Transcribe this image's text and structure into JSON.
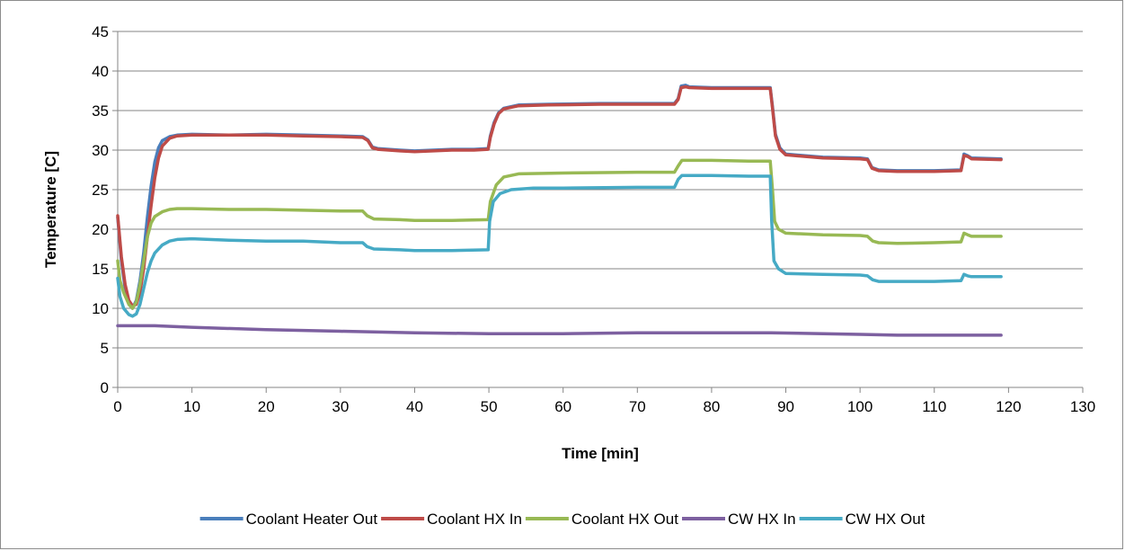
{
  "chart_data": {
    "type": "line",
    "xlabel": "Time [min]",
    "ylabel": "Temperature [C]",
    "xlim": [
      0,
      130
    ],
    "ylim": [
      0,
      45
    ],
    "x_ticks": [
      0,
      10,
      20,
      30,
      40,
      50,
      60,
      70,
      80,
      90,
      100,
      110,
      120,
      130
    ],
    "y_ticks": [
      0,
      5,
      10,
      15,
      20,
      25,
      30,
      35,
      40,
      45
    ],
    "grid": "horizontal",
    "legend_position": "bottom",
    "series": [
      {
        "name": "Coolant Heater Out",
        "color": "#4a7ebb",
        "points": [
          [
            0,
            21.5
          ],
          [
            0.5,
            16
          ],
          [
            1,
            12.5
          ],
          [
            1.5,
            10.5
          ],
          [
            2,
            10
          ],
          [
            2.5,
            11
          ],
          [
            3,
            13.5
          ],
          [
            3.5,
            17
          ],
          [
            4,
            21.5
          ],
          [
            4.5,
            25.5
          ],
          [
            5,
            28.5
          ],
          [
            5.5,
            30.3
          ],
          [
            6,
            31.2
          ],
          [
            7,
            31.7
          ],
          [
            8,
            31.9
          ],
          [
            10,
            32
          ],
          [
            15,
            31.9
          ],
          [
            20,
            32
          ],
          [
            25,
            31.9
          ],
          [
            30,
            31.8
          ],
          [
            33,
            31.7
          ],
          [
            33.7,
            31.3
          ],
          [
            34.3,
            30.4
          ],
          [
            35,
            30.2
          ],
          [
            38,
            30
          ],
          [
            40,
            29.9
          ],
          [
            45,
            30.1
          ],
          [
            48,
            30.1
          ],
          [
            49.9,
            30.2
          ],
          [
            50.2,
            31.8
          ],
          [
            50.7,
            33.5
          ],
          [
            51.3,
            34.7
          ],
          [
            52,
            35.3
          ],
          [
            54,
            35.7
          ],
          [
            58,
            35.8
          ],
          [
            65,
            35.9
          ],
          [
            70,
            35.9
          ],
          [
            75,
            35.9
          ],
          [
            75.5,
            36.5
          ],
          [
            75.9,
            38.1
          ],
          [
            76.5,
            38.2
          ],
          [
            77,
            38
          ],
          [
            80,
            37.9
          ],
          [
            85,
            37.9
          ],
          [
            87.9,
            37.9
          ],
          [
            88.2,
            35.5
          ],
          [
            88.6,
            32
          ],
          [
            89.2,
            30.3
          ],
          [
            90,
            29.5
          ],
          [
            95,
            29.1
          ],
          [
            100,
            29
          ],
          [
            101,
            28.9
          ],
          [
            101.6,
            27.8
          ],
          [
            102.5,
            27.5
          ],
          [
            105,
            27.4
          ],
          [
            110,
            27.4
          ],
          [
            113.6,
            27.5
          ],
          [
            114,
            29.5
          ],
          [
            114.5,
            29.3
          ],
          [
            115,
            29
          ],
          [
            119,
            28.9
          ]
        ]
      },
      {
        "name": "Coolant HX In",
        "color": "#be4b48",
        "points": [
          [
            0,
            21.7
          ],
          [
            0.5,
            16.5
          ],
          [
            1,
            13
          ],
          [
            1.5,
            11
          ],
          [
            2,
            10.3
          ],
          [
            2.5,
            10.5
          ],
          [
            3,
            12
          ],
          [
            3.5,
            15
          ],
          [
            4,
            19
          ],
          [
            4.5,
            23
          ],
          [
            5,
            26.5
          ],
          [
            5.5,
            29
          ],
          [
            6,
            30.5
          ],
          [
            7,
            31.5
          ],
          [
            8,
            31.8
          ],
          [
            10,
            31.9
          ],
          [
            15,
            31.9
          ],
          [
            20,
            31.9
          ],
          [
            25,
            31.8
          ],
          [
            30,
            31.7
          ],
          [
            33,
            31.6
          ],
          [
            33.7,
            31.2
          ],
          [
            34.3,
            30.3
          ],
          [
            35,
            30.1
          ],
          [
            38,
            29.9
          ],
          [
            40,
            29.8
          ],
          [
            45,
            30
          ],
          [
            48,
            30
          ],
          [
            49.9,
            30.1
          ],
          [
            50.2,
            31.6
          ],
          [
            50.7,
            33.3
          ],
          [
            51.3,
            34.6
          ],
          [
            52,
            35.2
          ],
          [
            54,
            35.6
          ],
          [
            58,
            35.7
          ],
          [
            65,
            35.8
          ],
          [
            70,
            35.8
          ],
          [
            75,
            35.8
          ],
          [
            75.5,
            36.4
          ],
          [
            75.9,
            37.9
          ],
          [
            76.5,
            38
          ],
          [
            77,
            37.9
          ],
          [
            80,
            37.8
          ],
          [
            85,
            37.8
          ],
          [
            87.9,
            37.8
          ],
          [
            88.2,
            35.3
          ],
          [
            88.6,
            31.8
          ],
          [
            89.2,
            30.1
          ],
          [
            90,
            29.4
          ],
          [
            95,
            29
          ],
          [
            100,
            28.9
          ],
          [
            101,
            28.8
          ],
          [
            101.6,
            27.7
          ],
          [
            102.5,
            27.4
          ],
          [
            105,
            27.3
          ],
          [
            110,
            27.3
          ],
          [
            113.6,
            27.4
          ],
          [
            114,
            29.3
          ],
          [
            114.5,
            29.2
          ],
          [
            115,
            28.9
          ],
          [
            119,
            28.8
          ]
        ]
      },
      {
        "name": "Coolant HX Out",
        "color": "#98b954",
        "points": [
          [
            0,
            16
          ],
          [
            0.3,
            13.5
          ],
          [
            0.8,
            12
          ],
          [
            1.5,
            10.5
          ],
          [
            2,
            10
          ],
          [
            2.5,
            10.8
          ],
          [
            3,
            13
          ],
          [
            3.5,
            16
          ],
          [
            4,
            19
          ],
          [
            4.5,
            20.8
          ],
          [
            5,
            21.6
          ],
          [
            6,
            22.2
          ],
          [
            7,
            22.5
          ],
          [
            8,
            22.6
          ],
          [
            10,
            22.6
          ],
          [
            15,
            22.5
          ],
          [
            20,
            22.5
          ],
          [
            25,
            22.4
          ],
          [
            30,
            22.3
          ],
          [
            33,
            22.3
          ],
          [
            33.6,
            21.7
          ],
          [
            34.5,
            21.3
          ],
          [
            38,
            21.2
          ],
          [
            40,
            21.1
          ],
          [
            45,
            21.1
          ],
          [
            49.9,
            21.2
          ],
          [
            50.2,
            23.5
          ],
          [
            51,
            25.6
          ],
          [
            52,
            26.6
          ],
          [
            54,
            27
          ],
          [
            60,
            27.1
          ],
          [
            70,
            27.2
          ],
          [
            75,
            27.2
          ],
          [
            75.5,
            28
          ],
          [
            76,
            28.7
          ],
          [
            80,
            28.7
          ],
          [
            85,
            28.6
          ],
          [
            87.9,
            28.6
          ],
          [
            88.2,
            25
          ],
          [
            88.5,
            21
          ],
          [
            89,
            20
          ],
          [
            90,
            19.5
          ],
          [
            95,
            19.3
          ],
          [
            100,
            19.2
          ],
          [
            101,
            19.1
          ],
          [
            101.7,
            18.5
          ],
          [
            102.5,
            18.3
          ],
          [
            105,
            18.2
          ],
          [
            110,
            18.3
          ],
          [
            113.6,
            18.4
          ],
          [
            114,
            19.5
          ],
          [
            114.5,
            19.3
          ],
          [
            115,
            19.1
          ],
          [
            119,
            19.1
          ]
        ]
      },
      {
        "name": "CW HX In",
        "color": "#7d60a0",
        "points": [
          [
            0,
            7.8
          ],
          [
            5,
            7.8
          ],
          [
            10,
            7.6
          ],
          [
            20,
            7.3
          ],
          [
            30,
            7.1
          ],
          [
            40,
            6.9
          ],
          [
            50,
            6.8
          ],
          [
            60,
            6.8
          ],
          [
            70,
            6.9
          ],
          [
            80,
            6.9
          ],
          [
            88,
            6.9
          ],
          [
            95,
            6.8
          ],
          [
            100,
            6.7
          ],
          [
            105,
            6.6
          ],
          [
            110,
            6.6
          ],
          [
            119,
            6.6
          ]
        ]
      },
      {
        "name": "CW HX Out",
        "color": "#46aac5",
        "points": [
          [
            0,
            13.8
          ],
          [
            0.3,
            11.5
          ],
          [
            0.8,
            10
          ],
          [
            1.5,
            9.2
          ],
          [
            2,
            9
          ],
          [
            2.5,
            9.3
          ],
          [
            3,
            10.5
          ],
          [
            3.5,
            12.5
          ],
          [
            4,
            14.5
          ],
          [
            4.5,
            16
          ],
          [
            5,
            17
          ],
          [
            6,
            18
          ],
          [
            7,
            18.5
          ],
          [
            8,
            18.7
          ],
          [
            10,
            18.8
          ],
          [
            15,
            18.6
          ],
          [
            20,
            18.5
          ],
          [
            25,
            18.5
          ],
          [
            30,
            18.3
          ],
          [
            33,
            18.3
          ],
          [
            33.6,
            17.8
          ],
          [
            34.5,
            17.5
          ],
          [
            38,
            17.4
          ],
          [
            40,
            17.3
          ],
          [
            45,
            17.3
          ],
          [
            49.9,
            17.4
          ],
          [
            50.1,
            21
          ],
          [
            50.6,
            23.5
          ],
          [
            51.5,
            24.5
          ],
          [
            53,
            25
          ],
          [
            56,
            25.2
          ],
          [
            60,
            25.2
          ],
          [
            70,
            25.3
          ],
          [
            75,
            25.3
          ],
          [
            75.5,
            26.3
          ],
          [
            76,
            26.8
          ],
          [
            80,
            26.8
          ],
          [
            85,
            26.7
          ],
          [
            87.9,
            26.7
          ],
          [
            88.1,
            21
          ],
          [
            88.4,
            16
          ],
          [
            89,
            15
          ],
          [
            90,
            14.4
          ],
          [
            95,
            14.3
          ],
          [
            100,
            14.2
          ],
          [
            101,
            14.1
          ],
          [
            101.7,
            13.6
          ],
          [
            102.5,
            13.4
          ],
          [
            105,
            13.4
          ],
          [
            110,
            13.4
          ],
          [
            113.6,
            13.5
          ],
          [
            114,
            14.3
          ],
          [
            114.5,
            14.1
          ],
          [
            115,
            14
          ],
          [
            119,
            14
          ]
        ]
      }
    ]
  }
}
